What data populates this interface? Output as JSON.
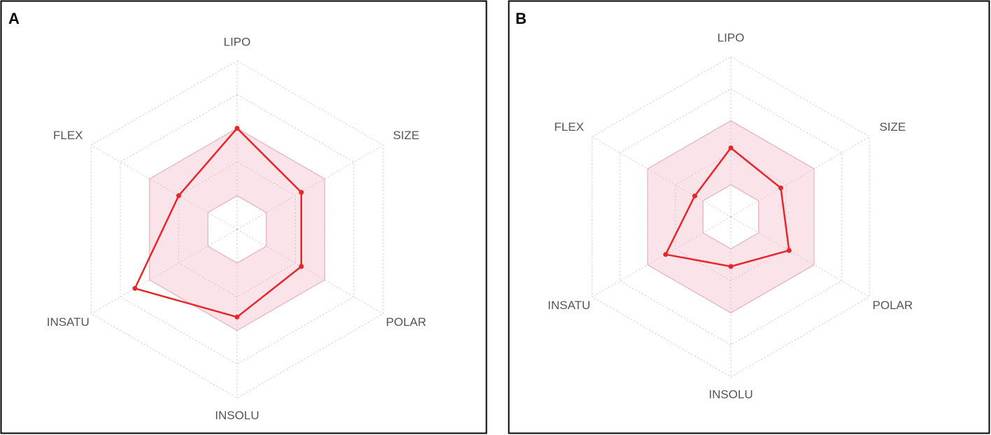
{
  "chart_data": [
    {
      "type": "radar",
      "panel": "A",
      "axes": [
        "LIPO",
        "SIZE",
        "POLAR",
        "INSOLU",
        "INSATU",
        "FLEX"
      ],
      "values": [
        3.0,
        2.2,
        2.2,
        2.6,
        3.5,
        2.0
      ],
      "color": "#e8262a",
      "band_color": "#fbe3ea",
      "band_edge": "#f4a9b8",
      "band": [
        1,
        3
      ],
      "rlim": [
        0,
        5
      ],
      "rticks": [
        1,
        2,
        3,
        4,
        5
      ],
      "grid": true
    },
    {
      "type": "radar",
      "panel": "B",
      "axes": [
        "LIPO",
        "SIZE",
        "POLAR",
        "INSOLU",
        "INSATU",
        "FLEX"
      ],
      "values": [
        2.15,
        1.8,
        2.1,
        1.55,
        2.35,
        1.3
      ],
      "color": "#e8262a",
      "band_color": "#fbe3ea",
      "band_edge": "#f4a9b8",
      "band": [
        1,
        3
      ],
      "rlim": [
        0,
        5
      ],
      "rticks": [
        1,
        2,
        3,
        4,
        5
      ],
      "grid": true
    }
  ]
}
